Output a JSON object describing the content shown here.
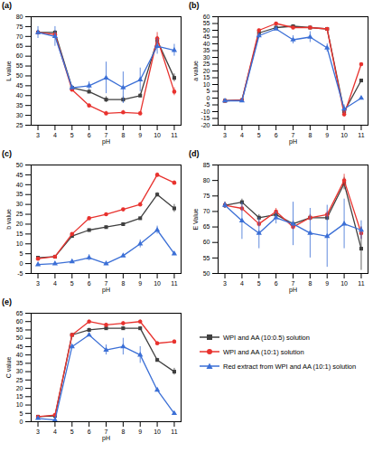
{
  "chart_data": [
    {
      "type": "line",
      "title": "(a)",
      "xlabel": "pH",
      "ylabel": "L value",
      "x": [
        3,
        4,
        5,
        6,
        7,
        8,
        9,
        10,
        11
      ],
      "xlim": [
        2.6,
        11.4
      ],
      "xticks": [
        3,
        4,
        5,
        6,
        7,
        8,
        9,
        10,
        11
      ],
      "ylim": [
        25,
        80
      ],
      "yticks": [
        25,
        30,
        35,
        40,
        45,
        50,
        55,
        60,
        65,
        70,
        75,
        80
      ],
      "grid": false,
      "series": [
        {
          "name": "WPI and AA (10:0.5) solution",
          "color": "#3f3f3f",
          "marker": "square",
          "values": [
            72,
            72,
            44,
            42,
            38,
            38,
            40,
            68,
            49
          ],
          "errors": [
            1,
            1,
            1,
            1,
            1.5,
            1.5,
            1,
            2,
            2
          ]
        },
        {
          "name": "WPI and AA (10:1) solution",
          "color": "#e8322e",
          "marker": "circle",
          "values": [
            72,
            71,
            43,
            35,
            31,
            31.5,
            31,
            69,
            42
          ],
          "errors": [
            1,
            1,
            1,
            1,
            1,
            1,
            1,
            3,
            2
          ]
        },
        {
          "name": "Red extract from WPI and AA (10:1) solution",
          "color": "#3b6fd6",
          "marker": "triangle",
          "values": [
            72,
            70,
            44,
            45,
            49,
            44,
            48,
            65,
            63
          ],
          "errors": [
            3,
            5,
            1,
            2,
            8,
            8,
            6,
            4,
            3
          ]
        }
      ]
    },
    {
      "type": "line",
      "title": "(b)",
      "xlabel": "pH",
      "ylabel": "a value",
      "x": [
        3,
        4,
        5,
        6,
        7,
        8,
        9,
        10,
        11
      ],
      "xlim": [
        2.6,
        11.4
      ],
      "xticks": [
        3,
        4,
        5,
        6,
        7,
        8,
        9,
        10,
        11
      ],
      "ylim": [
        -20,
        60
      ],
      "yticks": [
        -20,
        -15,
        -10,
        -5,
        0,
        5,
        10,
        15,
        20,
        25,
        30,
        35,
        40,
        45,
        50,
        55,
        60
      ],
      "grid": false,
      "series": [
        {
          "name": "WPI and AA (10:0.5) solution",
          "color": "#3f3f3f",
          "marker": "square",
          "values": [
            -2,
            -1.5,
            48,
            52,
            53,
            52,
            51,
            -10,
            13
          ],
          "errors": [
            0.5,
            0.5,
            1,
            1,
            1,
            1,
            1,
            2,
            1
          ]
        },
        {
          "name": "WPI and AA (10:1) solution",
          "color": "#e8322e",
          "marker": "circle",
          "values": [
            -2,
            -1.5,
            50,
            55,
            52,
            52,
            51,
            -12,
            25
          ],
          "errors": [
            0.5,
            0.5,
            1,
            1,
            1,
            1,
            1,
            2,
            1
          ]
        },
        {
          "name": "Red extract from WPI and AA (10:1) solution",
          "color": "#3b6fd6",
          "marker": "triangle",
          "values": [
            -2,
            -2,
            46,
            51,
            43,
            45,
            37,
            -8,
            0
          ],
          "errors": [
            0.5,
            0.5,
            1,
            1,
            3,
            4,
            3,
            3,
            1
          ]
        }
      ]
    },
    {
      "type": "line",
      "title": "(c)",
      "xlabel": "pH",
      "ylabel": "b value",
      "x": [
        3,
        4,
        5,
        6,
        7,
        8,
        9,
        10,
        11
      ],
      "xlim": [
        2.6,
        11.4
      ],
      "xticks": [
        3,
        4,
        5,
        6,
        7,
        8,
        9,
        10,
        11
      ],
      "ylim": [
        -5,
        50
      ],
      "yticks": [
        -5,
        0,
        5,
        10,
        15,
        20,
        25,
        30,
        35,
        40,
        45,
        50
      ],
      "grid": false,
      "series": [
        {
          "name": "WPI and AA (10:0.5) solution",
          "color": "#3f3f3f",
          "marker": "square",
          "values": [
            3,
            3.5,
            14,
            17,
            18.5,
            20,
            23,
            35,
            28
          ],
          "errors": [
            0.5,
            0.5,
            0.5,
            0.5,
            0.5,
            0.5,
            0.5,
            1,
            2
          ]
        },
        {
          "name": "WPI and AA (10:1) solution",
          "color": "#e8322e",
          "marker": "circle",
          "values": [
            2.5,
            3.5,
            15,
            23,
            25,
            27.5,
            30,
            45,
            41
          ],
          "errors": [
            0.5,
            0.5,
            0.5,
            0.5,
            0.5,
            0.5,
            1,
            1,
            1
          ]
        },
        {
          "name": "Red extract from WPI and AA (10:1) solution",
          "color": "#3b6fd6",
          "marker": "triangle",
          "values": [
            -0.5,
            0,
            1,
            3,
            0,
            4,
            10,
            17,
            5
          ],
          "errors": [
            0.5,
            0.5,
            0.5,
            1.5,
            0.5,
            0.5,
            2,
            2,
            0.5
          ]
        }
      ]
    },
    {
      "type": "line",
      "title": "(d)",
      "xlabel": "pH",
      "ylabel": "E Value",
      "x": [
        3,
        4,
        5,
        6,
        7,
        8,
        9,
        10,
        11
      ],
      "xlim": [
        2.6,
        11.4
      ],
      "xticks": [
        3,
        4,
        5,
        6,
        7,
        8,
        9,
        10,
        11
      ],
      "ylim": [
        50,
        85
      ],
      "yticks": [
        50,
        55,
        60,
        65,
        70,
        75,
        80,
        85
      ],
      "grid": false,
      "series": [
        {
          "name": "WPI and AA (10:0.5) solution",
          "color": "#3f3f3f",
          "marker": "square",
          "values": [
            72,
            73,
            68,
            69,
            66,
            68,
            68,
            79,
            58
          ],
          "errors": [
            1,
            1,
            1,
            1,
            1,
            1,
            1,
            2,
            7
          ]
        },
        {
          "name": "WPI and AA (10:1) solution",
          "color": "#e8322e",
          "marker": "circle",
          "values": [
            72,
            71,
            66,
            70,
            65,
            68,
            69,
            80,
            63
          ],
          "errors": [
            1,
            1,
            1,
            1,
            1,
            1,
            1,
            2,
            2
          ]
        },
        {
          "name": "Red extract from WPI and AA (10:1) solution",
          "color": "#3b6fd6",
          "marker": "triangle",
          "values": [
            72,
            67,
            63,
            68,
            66,
            63,
            62,
            66,
            64
          ],
          "errors": [
            1,
            6,
            5,
            2,
            7,
            8,
            10,
            8,
            3
          ]
        }
      ]
    },
    {
      "type": "line",
      "title": "(e)",
      "xlabel": "pH",
      "ylabel": "C value",
      "legend": "lower right",
      "x": [
        3,
        4,
        5,
        6,
        7,
        8,
        9,
        10,
        11
      ],
      "xlim": [
        2.6,
        11.4
      ],
      "xticks": [
        3,
        4,
        5,
        6,
        7,
        8,
        9,
        10,
        11
      ],
      "ylim": [
        0,
        65
      ],
      "yticks": [
        0,
        5,
        10,
        15,
        20,
        25,
        30,
        35,
        40,
        45,
        50,
        55,
        60,
        65
      ],
      "grid": false,
      "series": [
        {
          "name": "WPI and AA (10:0.5) solution",
          "color": "#3f3f3f",
          "marker": "square",
          "values": [
            3,
            3.5,
            52,
            55,
            56,
            56,
            56,
            37,
            30
          ],
          "errors": [
            0.5,
            0.5,
            1,
            1,
            1,
            1,
            1,
            1,
            2
          ]
        },
        {
          "name": "WPI and AA (10:1) solution",
          "color": "#e8322e",
          "marker": "circle",
          "values": [
            3,
            4,
            52,
            60,
            58,
            59,
            60,
            47,
            48
          ],
          "errors": [
            0.5,
            0.5,
            1,
            1,
            1,
            1,
            1,
            1,
            1
          ]
        },
        {
          "name": "Red extract from WPI and AA (10:1) solution",
          "color": "#3b6fd6",
          "marker": "triangle",
          "values": [
            2,
            1,
            45,
            52,
            43,
            45,
            40,
            19,
            5
          ],
          "errors": [
            0.5,
            0.5,
            1,
            1,
            3,
            5,
            5,
            1,
            0.5
          ]
        }
      ]
    }
  ]
}
